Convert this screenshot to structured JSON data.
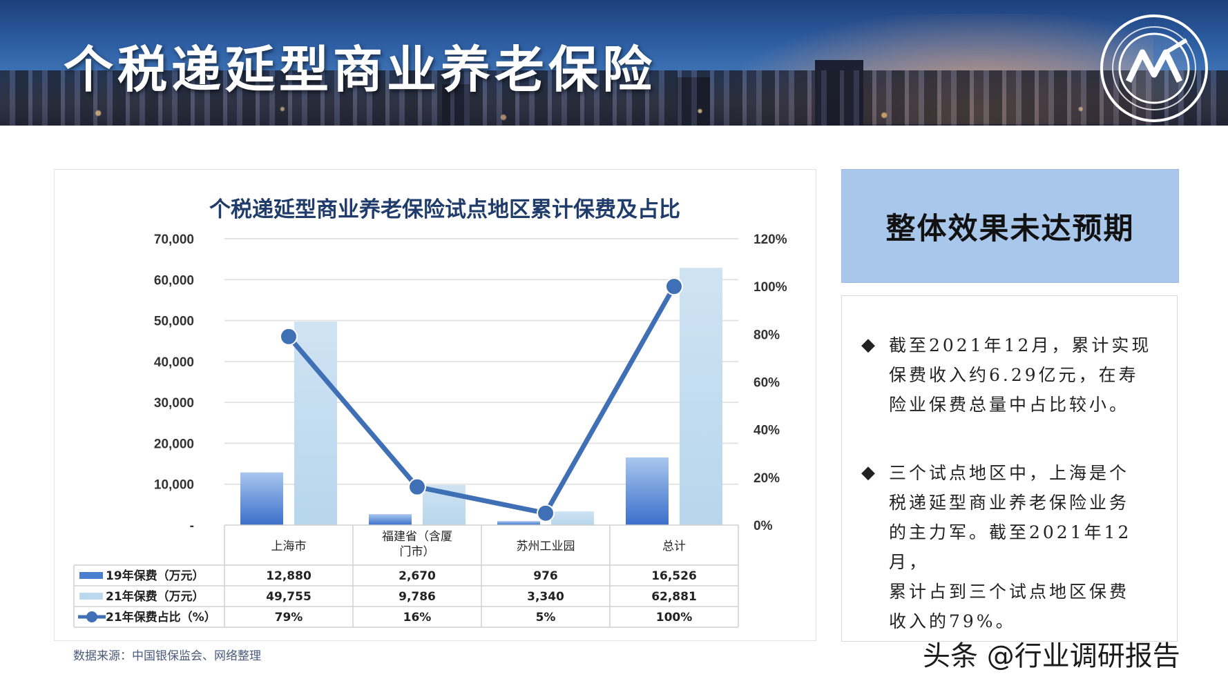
{
  "banner": {
    "title": "个税递延型商业养老保险"
  },
  "chart_data": {
    "type": "bar",
    "title": "个税递延型商业养老保险试点地区累计保费及占比",
    "categories": [
      "上海市",
      "福建省（含厦门市）",
      "苏州工业园",
      "总计"
    ],
    "category_lines": [
      [
        "上海市"
      ],
      [
        "福建省（含厦",
        "门市）"
      ],
      [
        "苏州工业园"
      ],
      [
        "总计"
      ]
    ],
    "series": [
      {
        "name": "19年保费（万元）",
        "kind": "bar",
        "axis": "left",
        "color": "#4a7fd0",
        "values": [
          12880,
          2670,
          976,
          16526
        ],
        "labels": [
          "12,880",
          "2,670",
          "976",
          "16,526"
        ]
      },
      {
        "name": "21年保费（万元）",
        "kind": "bar",
        "axis": "left",
        "color": "#c4ddf0",
        "values": [
          49755,
          9786,
          3340,
          62881
        ],
        "labels": [
          "49,755",
          "9,786",
          "3,340",
          "62,881"
        ]
      },
      {
        "name": "21年保费占比（%）",
        "kind": "line",
        "axis": "right",
        "color": "#3f6fb4",
        "values": [
          79,
          16,
          5,
          100
        ],
        "labels": [
          "79%",
          "16%",
          "5%",
          "100%"
        ]
      }
    ],
    "y_left": {
      "range": [
        0,
        70000
      ],
      "ticks": [
        0,
        10000,
        20000,
        30000,
        40000,
        50000,
        60000,
        70000
      ],
      "tick_labels": [
        "-",
        "10,000",
        "20,000",
        "30,000",
        "40,000",
        "50,000",
        "60,000",
        "70,000"
      ]
    },
    "y_right": {
      "range": [
        0,
        120
      ],
      "ticks": [
        0,
        20,
        40,
        60,
        80,
        100,
        120
      ],
      "tick_labels": [
        "0%",
        "20%",
        "40%",
        "60%",
        "80%",
        "100%",
        "120%"
      ]
    },
    "grid": true,
    "legend": "data-table"
  },
  "source": "数据来源：中国银保监会、网络整理",
  "headline": "整体效果未达预期",
  "points": [
    {
      "bullet": "◆",
      "lines": [
        "截至2021年12月，累计实现",
        "保费收入约6.29亿元，在寿",
        "险业保费总量中占比较小。"
      ]
    },
    {
      "bullet": "◆",
      "lines": [
        "三个试点地区中，上海是个",
        "税递延型商业养老保险业务",
        "的主力军。截至2021年12月，",
        "累计占到三个试点地区保费",
        "收入的79%。"
      ]
    }
  ],
  "watermark": "头条 @行业调研报告",
  "colors": {
    "title_navy": "#1f3c6b",
    "headline_bg": "#a9c7ea",
    "bar19": "#4a7fd0",
    "bar21": "#c4ddf0",
    "line": "#3f6fb4"
  }
}
